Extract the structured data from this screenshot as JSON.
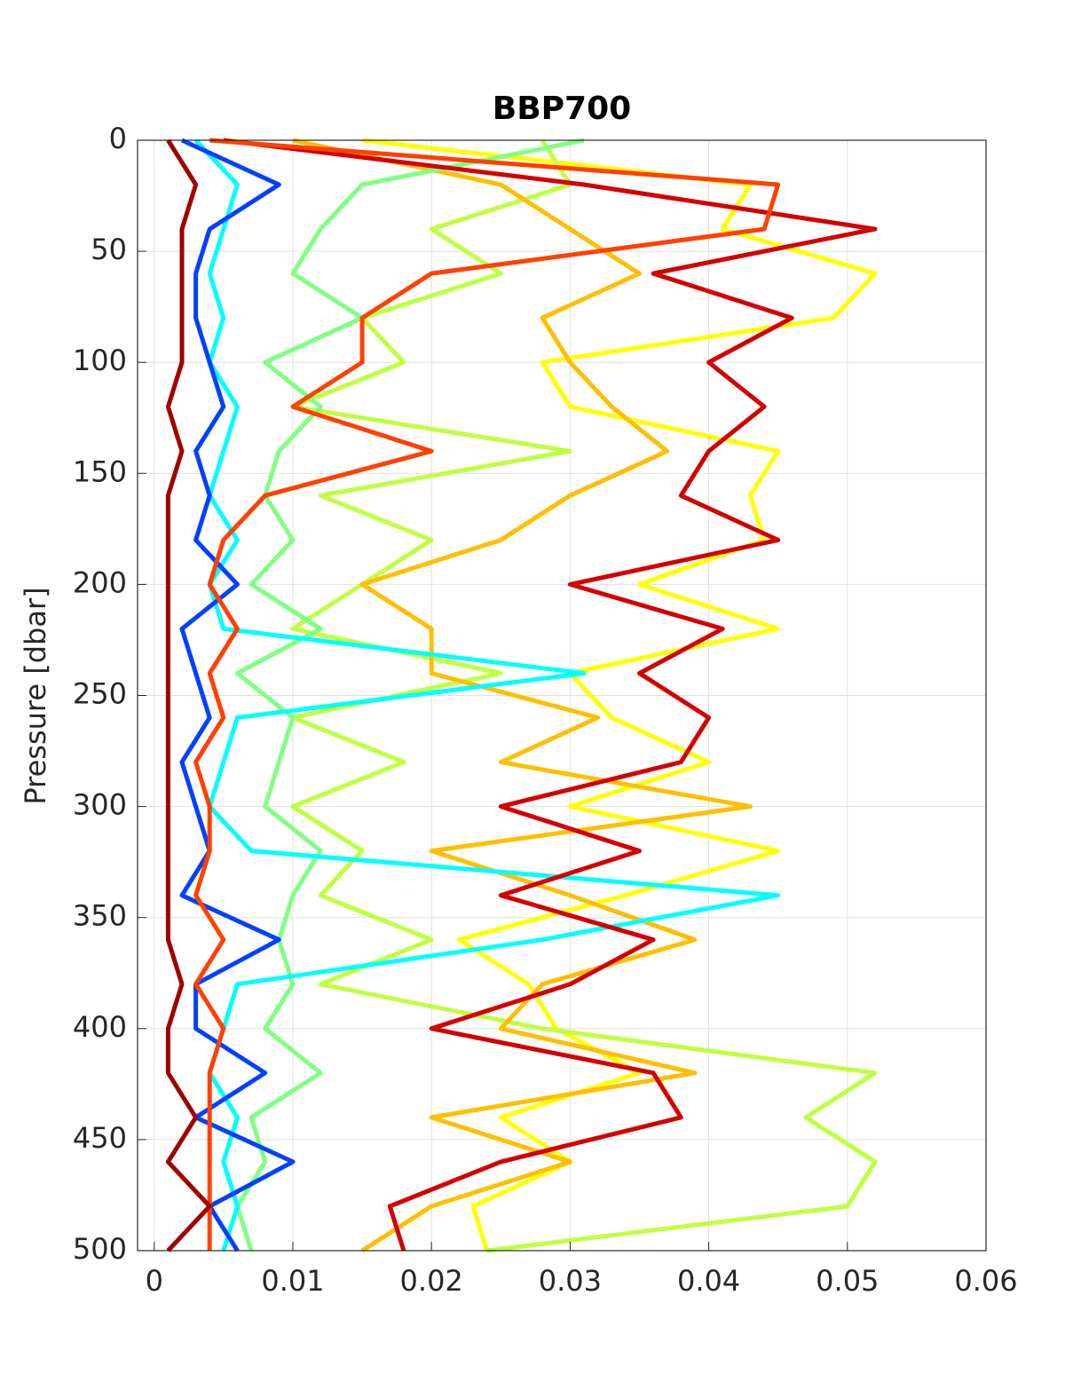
{
  "chart_data": {
    "type": "line",
    "title": "BBP700",
    "y_label": "Pressure [dbar]",
    "y": [
      0,
      20,
      40,
      60,
      80,
      100,
      120,
      140,
      160,
      180,
      200,
      220,
      240,
      260,
      280,
      300,
      320,
      340,
      360,
      380,
      400,
      420,
      440,
      460,
      480,
      500
    ],
    "series": [
      {
        "color": "#ffff00",
        "x": [
          0.015,
          0.043,
          0.041,
          0.052,
          0.049,
          0.028,
          0.03,
          0.045,
          0.043,
          0.044,
          0.035,
          0.045,
          0.03,
          0.033,
          0.04,
          0.03,
          0.045,
          0.034,
          0.022,
          0.027,
          0.029,
          0.035,
          0.025,
          0.03,
          0.023,
          0.024
        ]
      },
      {
        "color": "#bfff40",
        "x": [
          0.028,
          0.03,
          0.02,
          0.025,
          0.015,
          0.018,
          0.01,
          0.03,
          0.012,
          0.02,
          0.015,
          0.01,
          0.025,
          0.01,
          0.018,
          0.01,
          0.015,
          0.012,
          0.02,
          0.012,
          0.028,
          0.052,
          0.047,
          0.052,
          0.05,
          0.024
        ]
      },
      {
        "color": "#ffbf00",
        "x": [
          0.01,
          0.025,
          0.03,
          0.035,
          0.028,
          0.03,
          0.033,
          0.037,
          0.03,
          0.025,
          0.015,
          0.02,
          0.02,
          0.032,
          0.025,
          0.043,
          0.02,
          0.03,
          0.039,
          0.028,
          0.025,
          0.039,
          0.02,
          0.03,
          0.02,
          0.015
        ]
      },
      {
        "color": "#80ff80",
        "x": [
          0.031,
          0.015,
          0.012,
          0.01,
          0.015,
          0.008,
          0.012,
          0.009,
          0.008,
          0.01,
          0.007,
          0.012,
          0.006,
          0.01,
          0.009,
          0.008,
          0.012,
          0.01,
          0.009,
          0.01,
          0.008,
          0.012,
          0.007,
          0.008,
          0.006,
          0.007
        ]
      },
      {
        "color": "#00ffff",
        "x": [
          0.003,
          0.006,
          0.005,
          0.004,
          0.005,
          0.004,
          0.006,
          0.005,
          0.004,
          0.006,
          0.004,
          0.005,
          0.031,
          0.006,
          0.005,
          0.004,
          0.007,
          0.045,
          0.028,
          0.006,
          0.005,
          0.004,
          0.006,
          0.005,
          0.006,
          0.005
        ]
      },
      {
        "color": "#0040ff",
        "x": [
          0.002,
          0.009,
          0.004,
          0.003,
          0.003,
          0.004,
          0.005,
          0.003,
          0.004,
          0.003,
          0.006,
          0.002,
          0.003,
          0.004,
          0.002,
          0.003,
          0.004,
          0.002,
          0.009,
          0.003,
          0.003,
          0.008,
          0.003,
          0.01,
          0.004,
          0.006
        ]
      },
      {
        "color": "#d40000",
        "x": [
          0.005,
          0.031,
          0.052,
          0.036,
          0.046,
          0.04,
          0.044,
          0.04,
          0.038,
          0.045,
          0.03,
          0.041,
          0.035,
          0.04,
          0.038,
          0.025,
          0.035,
          0.025,
          0.036,
          0.03,
          0.02,
          0.036,
          0.038,
          0.025,
          0.017,
          0.018
        ]
      },
      {
        "color": "#ff4000",
        "x": [
          0.004,
          0.045,
          0.044,
          0.02,
          0.015,
          0.015,
          0.01,
          0.02,
          0.008,
          0.005,
          0.004,
          0.006,
          0.004,
          0.005,
          0.003,
          0.004,
          0.004,
          0.003,
          0.005,
          0.003,
          0.005,
          0.004,
          0.004,
          0.004,
          0.004,
          0.004
        ]
      },
      {
        "color": "#a00000",
        "x": [
          0.001,
          0.003,
          0.002,
          0.002,
          0.002,
          0.002,
          0.001,
          0.002,
          0.001,
          0.001,
          0.001,
          0.001,
          0.001,
          0.001,
          0.001,
          0.001,
          0.001,
          0.001,
          0.001,
          0.002,
          0.001,
          0.001,
          0.003,
          0.001,
          0.004,
          0.001
        ]
      }
    ],
    "xlim": [
      -0.0012,
      0.06
    ],
    "xticks": [
      0,
      0.01,
      0.02,
      0.03,
      0.04,
      0.05,
      0.06
    ],
    "ylim": [
      0,
      500
    ],
    "yticks": [
      0,
      50,
      100,
      150,
      200,
      250,
      300,
      350,
      400,
      450,
      500
    ],
    "y_reversed": true,
    "grid": true
  }
}
